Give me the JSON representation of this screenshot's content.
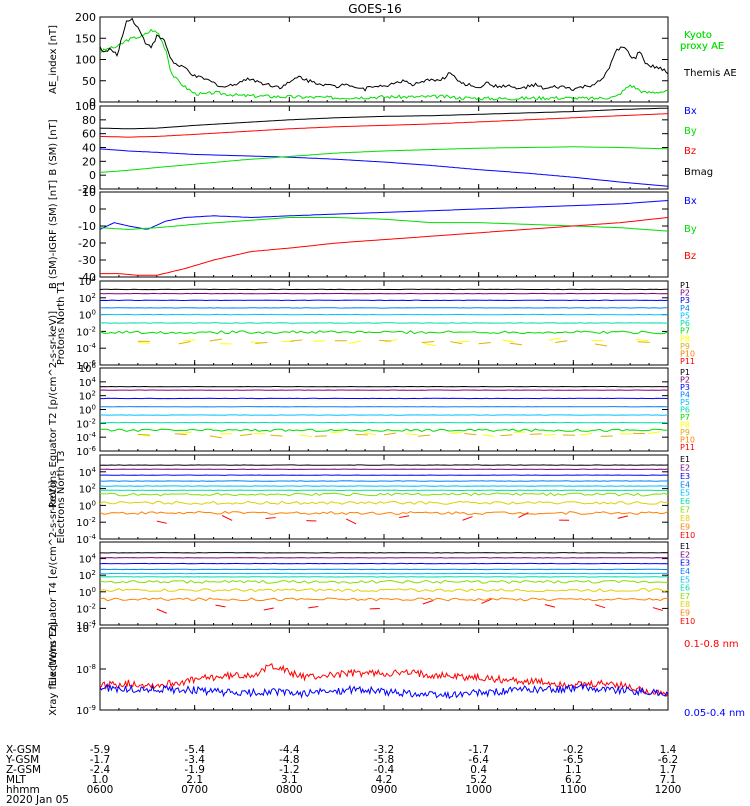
{
  "chart_data": [
    {
      "type": "line",
      "title": "GOES-16",
      "ylabel": "AE_index [nT]",
      "ylim": [
        0,
        200
      ],
      "yticks": [
        0,
        50,
        100,
        150,
        200
      ],
      "log": false,
      "series": [
        {
          "name": "Kyoto proxy AE",
          "color": "#00dd00",
          "x": [
            0,
            8,
            15,
            20,
            28,
            38,
            45,
            55,
            62,
            70,
            75,
            80,
            90,
            100,
            110,
            120,
            150,
            200,
            250,
            300,
            340,
            360,
            380,
            420,
            480,
            520,
            545,
            560,
            575,
            600
          ],
          "y": [
            118,
            125,
            128,
            132,
            145,
            152,
            155,
            170,
            160,
            120,
            70,
            55,
            35,
            20,
            18,
            22,
            15,
            12,
            10,
            12,
            12,
            13,
            10,
            8,
            10,
            8,
            12,
            40,
            22,
            25
          ]
        },
        {
          "name": "Themis AE",
          "color": "#000000",
          "x": [
            0,
            5,
            10,
            18,
            23,
            28,
            33,
            40,
            48,
            55,
            60,
            68,
            75,
            82,
            90,
            100,
            110,
            120,
            130,
            140,
            150,
            160,
            170,
            180,
            190,
            200,
            210,
            220,
            230,
            240,
            250,
            260,
            270,
            280,
            290,
            300,
            310,
            320,
            330,
            340,
            350,
            360,
            370,
            380,
            390,
            400,
            410,
            420,
            430,
            440,
            450,
            460,
            470,
            480,
            490,
            500,
            510,
            520,
            530,
            540,
            545,
            550,
            555,
            560,
            565,
            570,
            575,
            580,
            590,
            600
          ],
          "y": [
            130,
            115,
            125,
            110,
            150,
            190,
            198,
            175,
            140,
            130,
            155,
            145,
            100,
            85,
            80,
            60,
            55,
            45,
            35,
            40,
            50,
            55,
            45,
            40,
            35,
            45,
            60,
            50,
            45,
            40,
            35,
            45,
            35,
            30,
            40,
            35,
            45,
            50,
            40,
            45,
            55,
            50,
            70,
            45,
            40,
            35,
            45,
            35,
            40,
            30,
            35,
            40,
            30,
            35,
            35,
            30,
            35,
            40,
            50,
            90,
            120,
            130,
            125,
            110,
            100,
            120,
            95,
            85,
            80,
            70
          ]
        }
      ],
      "legend": [
        "Kyoto proxy AE",
        "Themis AE"
      ]
    },
    {
      "type": "line",
      "ylabel": "B (SM) [nT]",
      "ylim": [
        -20,
        100
      ],
      "yticks": [
        -20,
        0,
        20,
        40,
        60,
        80,
        100
      ],
      "log": false,
      "series": [
        {
          "name": "Bx",
          "color": "#0000ff",
          "x": [
            0,
            30,
            60,
            100,
            150,
            200,
            250,
            300,
            350,
            400,
            450,
            500,
            550,
            600
          ],
          "y": [
            38,
            35,
            33,
            30,
            28,
            26,
            23,
            19,
            14,
            8,
            3,
            -3,
            -10,
            -16
          ]
        },
        {
          "name": "By",
          "color": "#00dd00",
          "x": [
            0,
            30,
            60,
            100,
            150,
            200,
            250,
            300,
            350,
            400,
            450,
            500,
            550,
            600
          ],
          "y": [
            4,
            7,
            11,
            16,
            22,
            27,
            32,
            35,
            37,
            39,
            40,
            41,
            40,
            38
          ]
        },
        {
          "name": "Bz",
          "color": "#ff0000",
          "x": [
            0,
            30,
            60,
            100,
            150,
            200,
            250,
            300,
            350,
            400,
            450,
            500,
            550,
            600
          ],
          "y": [
            56,
            55,
            56,
            59,
            63,
            67,
            70,
            72,
            74,
            77,
            80,
            83,
            86,
            89
          ]
        },
        {
          "name": "Bmag",
          "color": "#000000",
          "x": [
            0,
            30,
            60,
            100,
            150,
            200,
            250,
            300,
            350,
            400,
            450,
            500,
            550,
            600
          ],
          "y": [
            68,
            67,
            68,
            72,
            76,
            80,
            83,
            85,
            86,
            88,
            90,
            92,
            95,
            97
          ]
        }
      ],
      "legend": [
        "Bx",
        "By",
        "Bz",
        "Bmag"
      ]
    },
    {
      "type": "line",
      "ylabel": "B (SM)-IGRF (SM) [nT]",
      "ylim": [
        -40,
        10
      ],
      "yticks": [
        -40,
        -30,
        -20,
        -10,
        0,
        10
      ],
      "log": false,
      "series": [
        {
          "name": "Bx",
          "color": "#0000ff",
          "x": [
            0,
            15,
            30,
            50,
            70,
            90,
            120,
            160,
            200,
            250,
            300,
            350,
            400,
            450,
            500,
            550,
            600
          ],
          "y": [
            -12,
            -8,
            -10,
            -12,
            -7,
            -5,
            -4,
            -5,
            -4,
            -3,
            -2,
            -1,
            0,
            1,
            2,
            3,
            5
          ]
        },
        {
          "name": "By",
          "color": "#00dd00",
          "x": [
            0,
            30,
            60,
            100,
            150,
            200,
            250,
            300,
            350,
            400,
            450,
            500,
            550,
            600
          ],
          "y": [
            -11,
            -12,
            -11,
            -9,
            -7,
            -5,
            -5,
            -6,
            -8,
            -8,
            -9,
            -10,
            -11,
            -13
          ]
        },
        {
          "name": "Bz",
          "color": "#ff0000",
          "x": [
            0,
            20,
            40,
            60,
            90,
            120,
            160,
            200,
            250,
            300,
            350,
            400,
            450,
            500,
            550,
            600
          ],
          "y": [
            -38,
            -38,
            -39,
            -39,
            -35,
            -30,
            -25,
            -23,
            -20,
            -18,
            -16,
            -14,
            -12,
            -10,
            -8,
            -5
          ]
        }
      ],
      "legend": [
        "Bx",
        "By",
        "Bz"
      ]
    },
    {
      "type": "line",
      "ylabel": "Protons North T1",
      "ylim": [
        -6,
        4
      ],
      "yticks": [
        "10^-6",
        "10^-4",
        "10^-2",
        "10^0",
        "10^2",
        "10^4"
      ],
      "log": true,
      "series": [
        {
          "name": "P1",
          "color": "#000000",
          "log10_level": 3.0
        },
        {
          "name": "P2",
          "color": "#800080",
          "log10_level": 2.5
        },
        {
          "name": "P3",
          "color": "#0000ff",
          "log10_level": 1.7
        },
        {
          "name": "P4",
          "color": "#0080ff",
          "log10_level": 0.8
        },
        {
          "name": "P5",
          "color": "#00c0ff",
          "log10_level": 0.0
        },
        {
          "name": "P6",
          "color": "#00ddaa",
          "log10_level": -1.0
        },
        {
          "name": "P7",
          "color": "#00dd00",
          "log10_level": -2.1
        },
        {
          "name": "P8",
          "color": "#ffff00",
          "log10_level": -3.2
        },
        {
          "name": "P9",
          "color": "#e0b000",
          "log10_level": -3.3
        },
        {
          "name": "P10",
          "color": "#ff8000",
          "log10_level": null
        },
        {
          "name": "P11",
          "color": "#ff0000",
          "log10_level": null
        }
      ],
      "legend": [
        "P1",
        "P2",
        "P3",
        "P4",
        "P5",
        "P6",
        "P7",
        "P8",
        "P9",
        "P10",
        "P11"
      ]
    },
    {
      "type": "line",
      "ylabel": "Protons Equator T2 [p/(cm^2-s-sr-keV)]",
      "ylim": [
        -6,
        6
      ],
      "yticks": [
        "10^-6",
        "10^-4",
        "10^-2",
        "10^0",
        "10^2",
        "10^4",
        "10^6"
      ],
      "log": true,
      "series": [
        {
          "name": "P1",
          "color": "#000000",
          "log10_level": 3.3
        },
        {
          "name": "P2",
          "color": "#800080",
          "log10_level": 2.8
        },
        {
          "name": "P3",
          "color": "#0000ff",
          "log10_level": 1.6
        },
        {
          "name": "P4",
          "color": "#0080ff",
          "log10_level": 0.4
        },
        {
          "name": "P5",
          "color": "#00c0ff",
          "log10_level": -0.8
        },
        {
          "name": "P6",
          "color": "#00ddaa",
          "log10_level": -1.9
        },
        {
          "name": "P7",
          "color": "#00dd00",
          "log10_level": -3.0
        },
        {
          "name": "P8",
          "color": "#ffff00",
          "log10_level": -3.5
        },
        {
          "name": "P9",
          "color": "#e0b000",
          "log10_level": -3.7
        },
        {
          "name": "P10",
          "color": "#ff8000",
          "log10_level": null
        },
        {
          "name": "P11",
          "color": "#ff0000",
          "log10_level": null
        }
      ],
      "legend": [
        "P1",
        "P2",
        "P3",
        "P4",
        "P5",
        "P6",
        "P7",
        "P8",
        "P9",
        "P10",
        "P11"
      ]
    },
    {
      "type": "line",
      "ylabel": "Electrons North T3",
      "ylim": [
        -4,
        6
      ],
      "yticks": [
        "10^-4",
        "10^-2",
        "10^0",
        "10^2",
        "10^4"
      ],
      "log": true,
      "series": [
        {
          "name": "E1",
          "color": "#000000",
          "log10_level": 4.8
        },
        {
          "name": "E2",
          "color": "#800080",
          "log10_level": 4.3
        },
        {
          "name": "E3",
          "color": "#0000ff",
          "log10_level": 3.6
        },
        {
          "name": "E4",
          "color": "#0080ff",
          "log10_level": 2.9
        },
        {
          "name": "E5",
          "color": "#00c0ff",
          "log10_level": 2.3
        },
        {
          "name": "E6",
          "color": "#00ddaa",
          "log10_level": 1.8
        },
        {
          "name": "E7",
          "color": "#80e000",
          "log10_level": 1.3
        },
        {
          "name": "E8",
          "color": "#e0d000",
          "log10_level": 0.3
        },
        {
          "name": "E9",
          "color": "#ff8000",
          "log10_level": -0.9
        },
        {
          "name": "E10",
          "color": "#ff0000",
          "log10_level": -1.6
        }
      ],
      "legend": [
        "E1",
        "E2",
        "E3",
        "E4",
        "E5",
        "E6",
        "E7",
        "E8",
        "E9",
        "E10"
      ]
    },
    {
      "type": "line",
      "ylabel": "Electrons Equator T4 [e/(cm^2-s-sr-keV)]",
      "ylim": [
        -4,
        6
      ],
      "yticks": [
        "10^-4",
        "10^-2",
        "10^0",
        "10^2",
        "10^4"
      ],
      "log": true,
      "series": [
        {
          "name": "E1",
          "color": "#000000",
          "log10_level": 4.7
        },
        {
          "name": "E2",
          "color": "#800080",
          "log10_level": 4.1
        },
        {
          "name": "E3",
          "color": "#0000ff",
          "log10_level": 3.4
        },
        {
          "name": "E4",
          "color": "#0080ff",
          "log10_level": 2.7
        },
        {
          "name": "E5",
          "color": "#00c0ff",
          "log10_level": 2.2
        },
        {
          "name": "E6",
          "color": "#00ddaa",
          "log10_level": 1.8
        },
        {
          "name": "E7",
          "color": "#80e000",
          "log10_level": 1.2
        },
        {
          "name": "E8",
          "color": "#e0d000",
          "log10_level": 0.2
        },
        {
          "name": "E9",
          "color": "#ff8000",
          "log10_level": -0.9
        },
        {
          "name": "E10",
          "color": "#ff0000",
          "log10_level": -1.8
        }
      ],
      "legend": [
        "E1",
        "E2",
        "E3",
        "E4",
        "E5",
        "E6",
        "E7",
        "E8",
        "E9",
        "E10"
      ]
    },
    {
      "type": "line",
      "ylabel": "Xray flux [W/m^2]",
      "ylim": [
        -9,
        -7
      ],
      "yticks": [
        "10^-9",
        "10^-8",
        "10^-7"
      ],
      "log": true,
      "series": [
        {
          "name": "0.1-0.8 nm",
          "color": "#ff0000",
          "x": [
            0,
            30,
            60,
            90,
            120,
            150,
            170,
            180,
            190,
            200,
            220,
            240,
            270,
            300,
            330,
            360,
            390,
            420,
            450,
            480,
            510,
            540,
            570,
            600
          ],
          "y": [
            -8.4,
            -8.35,
            -8.4,
            -8.3,
            -8.2,
            -8.15,
            -8.1,
            -7.9,
            -7.95,
            -8.1,
            -8.2,
            -8.15,
            -8.1,
            -8.1,
            -8.1,
            -8.15,
            -8.2,
            -8.25,
            -8.3,
            -8.35,
            -8.4,
            -8.35,
            -8.5,
            -8.6
          ]
        },
        {
          "name": "0.05-0.4 nm",
          "color": "#0000ff",
          "x": [
            0,
            30,
            60,
            90,
            120,
            150,
            180,
            210,
            240,
            270,
            300,
            330,
            360,
            390,
            420,
            450,
            480,
            510,
            540,
            570,
            600
          ],
          "y": [
            -8.45,
            -8.5,
            -8.5,
            -8.5,
            -8.55,
            -8.6,
            -8.55,
            -8.6,
            -8.55,
            -8.5,
            -8.55,
            -8.6,
            -8.65,
            -8.6,
            -8.55,
            -8.5,
            -8.5,
            -8.45,
            -8.5,
            -8.55,
            -8.6
          ]
        }
      ],
      "legend": [
        "0.1-0.8 nm",
        "0.05-0.4 nm"
      ]
    }
  ],
  "ephemeris": {
    "labels": [
      "X-GSM",
      "Y-GSM",
      "Z-GSM",
      "MLT",
      "hhmm"
    ],
    "date": "2020 Jan 05",
    "columns": [
      {
        "x_min": 0,
        "values": [
          "-5.9",
          "-1.7",
          "-2.4",
          "1.0",
          "0600"
        ]
      },
      {
        "x_min": 100,
        "values": [
          "-5.4",
          "-3.4",
          "-1.9",
          "2.1",
          "0700"
        ]
      },
      {
        "x_min": 200,
        "values": [
          "-4.4",
          "-4.8",
          "-1.2",
          "3.1",
          "0800"
        ]
      },
      {
        "x_min": 300,
        "values": [
          "-3.2",
          "-5.8",
          "-0.4",
          "4.2",
          "0900"
        ]
      },
      {
        "x_min": 400,
        "values": [
          "-1.7",
          "-6.4",
          "0.4",
          "5.2",
          "1000"
        ]
      },
      {
        "x_min": 500,
        "values": [
          "-0.2",
          "-6.5",
          "1.1",
          "6.2",
          "1100"
        ]
      },
      {
        "x_min": 600,
        "values": [
          "1.4",
          "-6.2",
          "1.7",
          "7.1",
          "1200"
        ]
      }
    ]
  }
}
